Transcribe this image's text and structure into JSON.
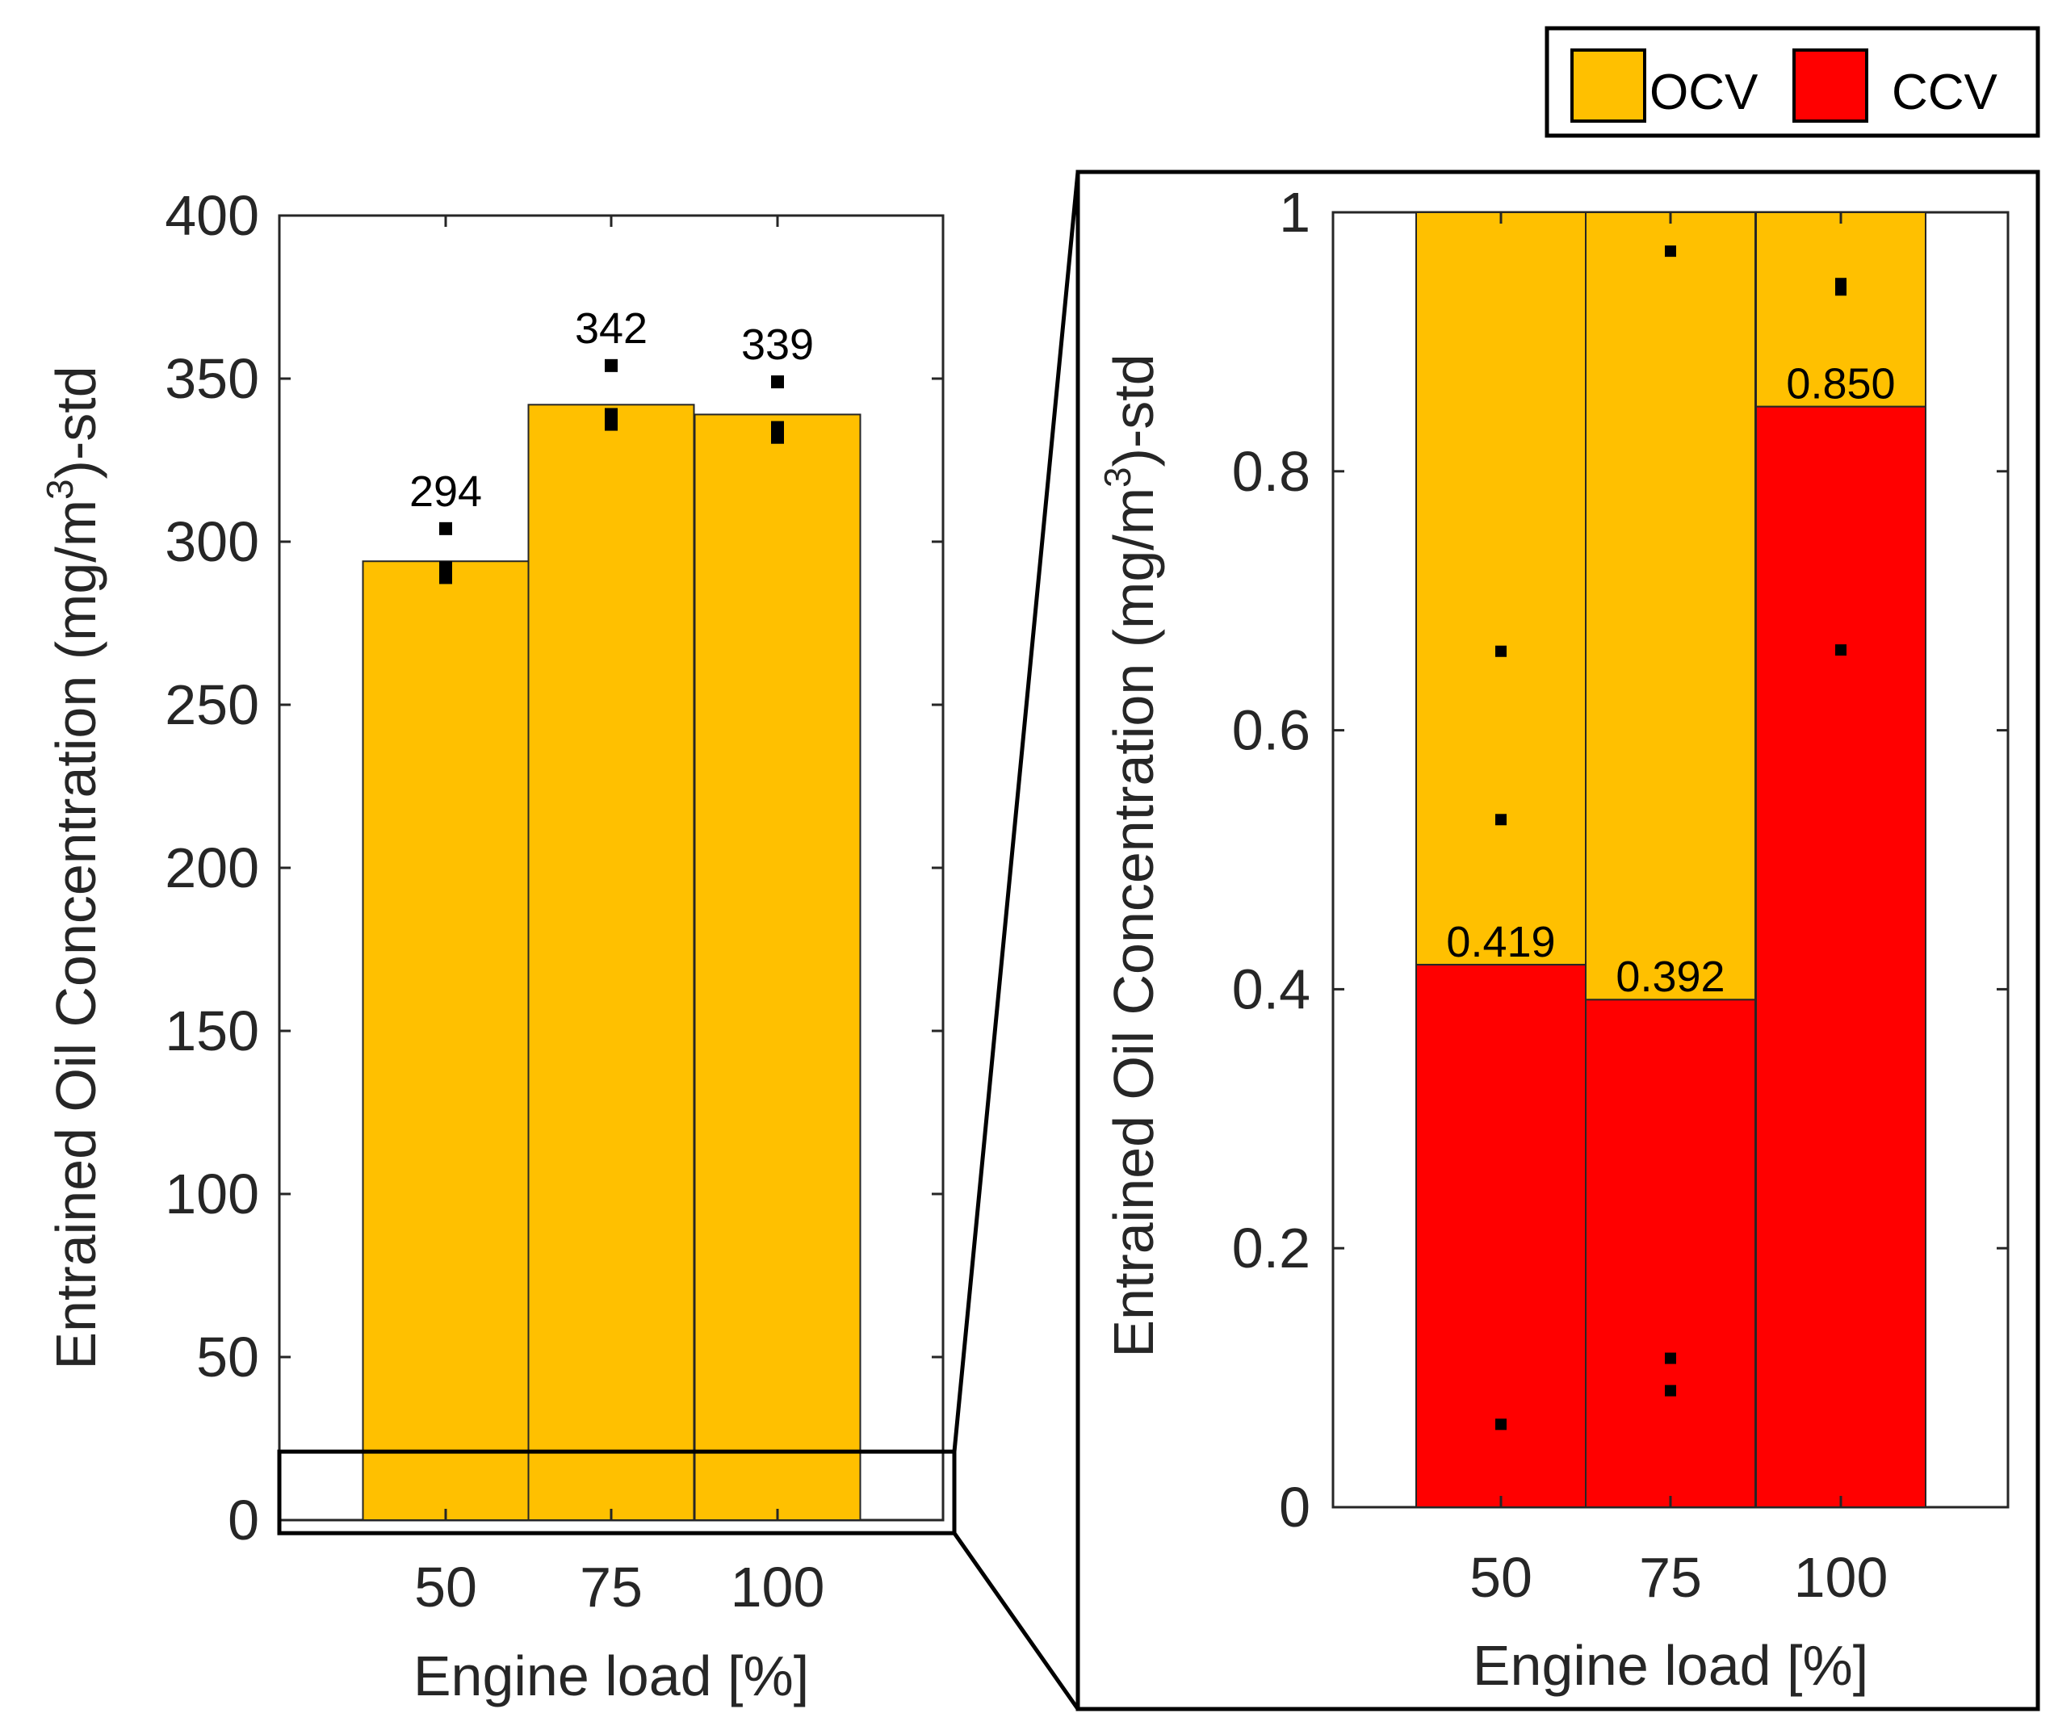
{
  "colors": {
    "ocv": "#FFC000",
    "ccv": "#FF0000",
    "axis": "#262626",
    "marker": "#000000"
  },
  "legend": {
    "items": [
      {
        "label": "OCV",
        "color": "#FFC000"
      },
      {
        "label": "CCV",
        "color": "#FF0000"
      }
    ]
  },
  "chart_data": [
    {
      "id": "left",
      "type": "bar",
      "categories": [
        "50",
        "75",
        "100"
      ],
      "values": [
        294,
        342,
        339
      ],
      "value_labels": [
        "294",
        "342",
        "339"
      ],
      "series_color": "#FFC000",
      "std_markers": [
        [
          289,
          292,
          304
        ],
        [
          336,
          339,
          354
        ],
        [
          332,
          335,
          349
        ]
      ],
      "xlabel": "Engine load [%]",
      "ylabel": "Entrained Oil Concentration (mg/m",
      "ylabel_sup": "3",
      "ylabel_tail": ")-std",
      "ylim": [
        0,
        400
      ],
      "yticks": [
        0,
        50,
        100,
        150,
        200,
        250,
        300,
        350,
        400
      ],
      "zoom_box_range": [
        -4,
        21
      ]
    },
    {
      "id": "right",
      "type": "bar",
      "stacked": true,
      "normalized": true,
      "categories": [
        "50",
        "75",
        "100"
      ],
      "series": [
        {
          "name": "CCV",
          "values": [
            0.419,
            0.392,
            0.85
          ],
          "color": "#FF0000"
        },
        {
          "name": "OCV",
          "values": [
            0.581,
            0.608,
            0.15
          ],
          "color": "#FFC000"
        }
      ],
      "value_labels": [
        "0.419",
        "0.392",
        "0.850"
      ],
      "std_markers": [
        [
          0.064,
          0.531,
          0.661
        ],
        [
          0.09,
          0.115,
          0.97
        ],
        [
          0.662,
          0.94,
          0.945
        ]
      ],
      "xlabel": "Engine load [%]",
      "ylabel": "Entrained Oil Concentration (mg/m",
      "ylabel_sup": "3",
      "ylabel_tail": ")-std",
      "ylim": [
        0,
        1
      ],
      "yticks": [
        0,
        0.2,
        0.4,
        0.6,
        0.8,
        1
      ],
      "ytick_labels": [
        "0",
        "0.2",
        "0.4",
        "0.6",
        "0.8",
        "1"
      ]
    }
  ]
}
